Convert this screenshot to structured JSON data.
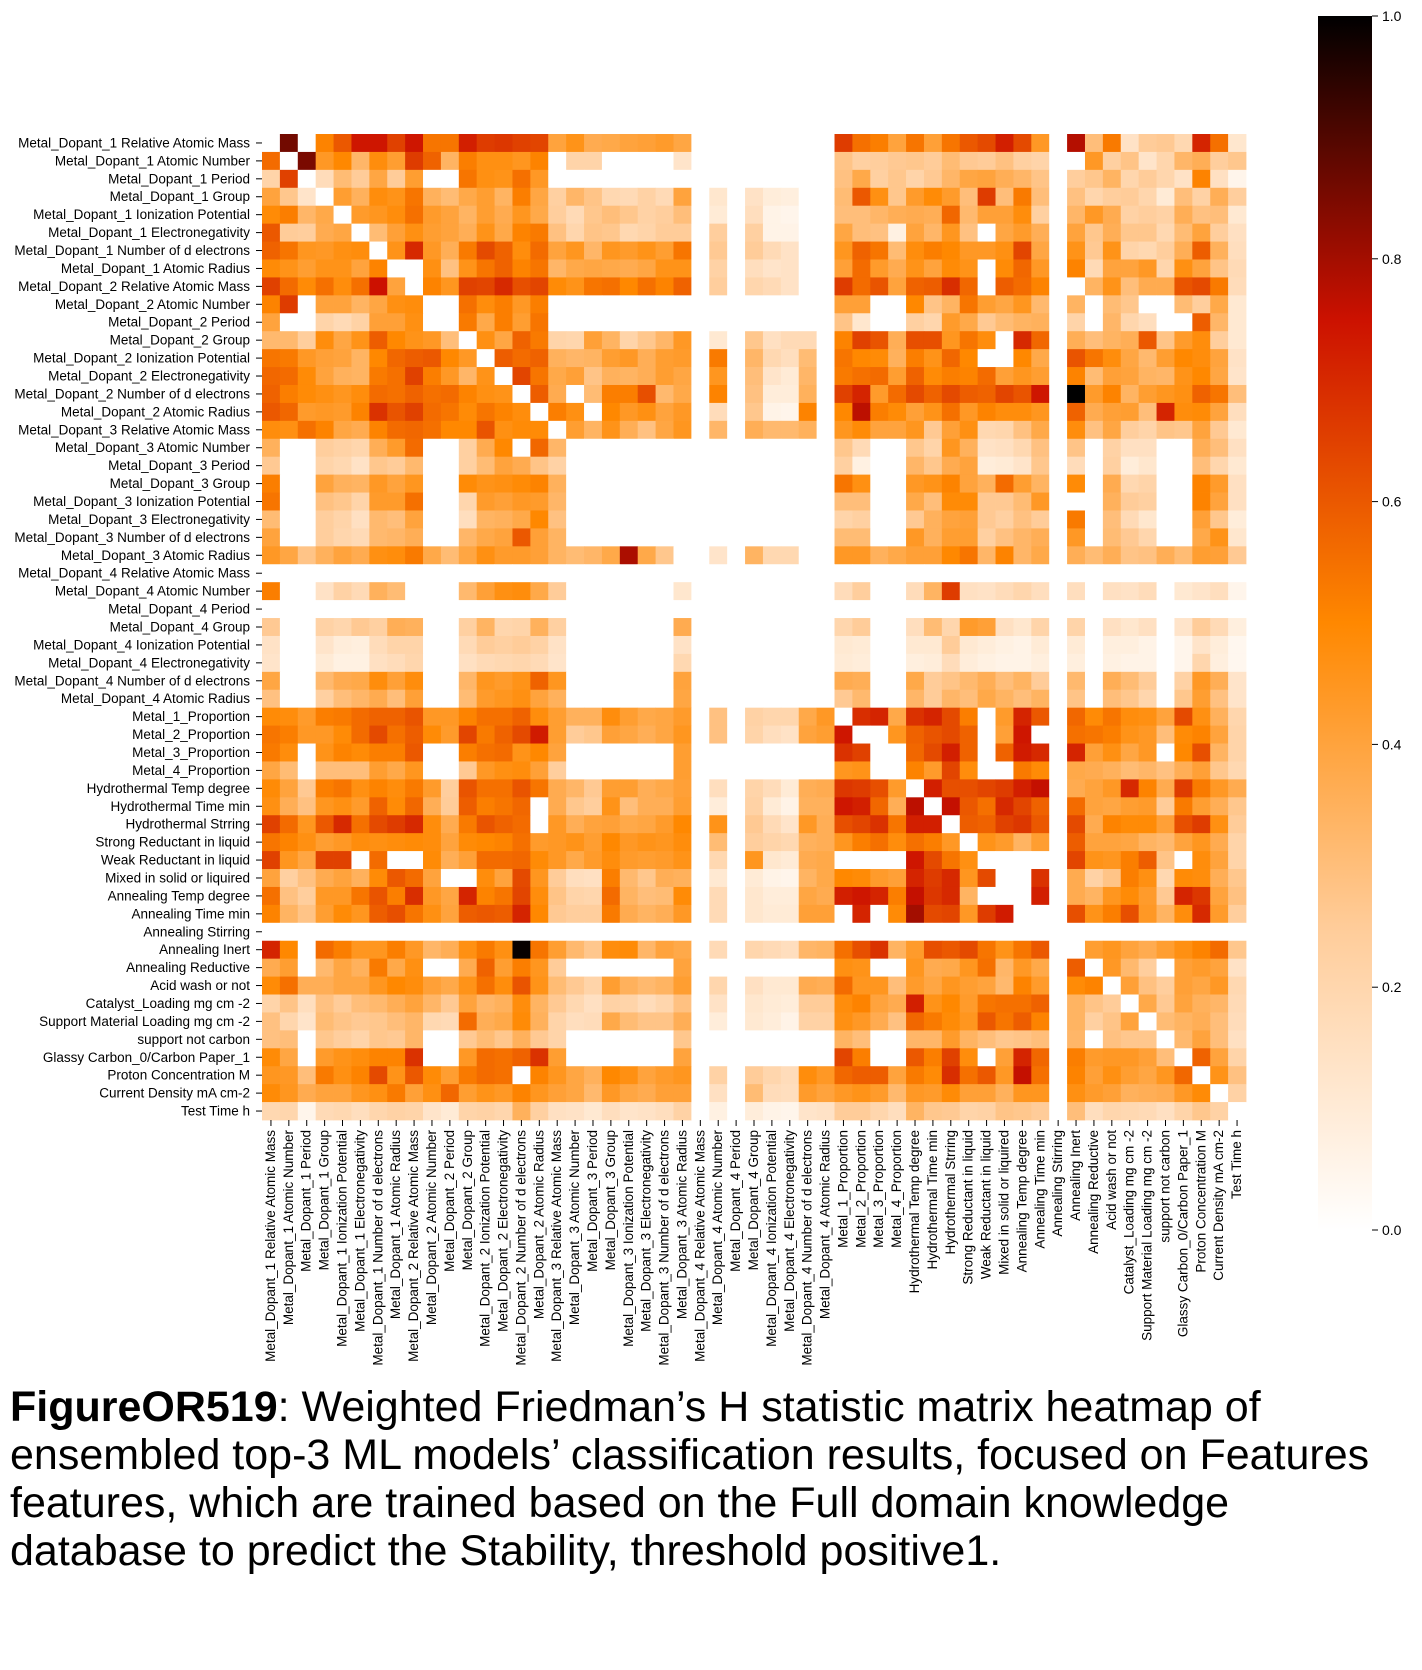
{
  "caption": {
    "label": "FigureOR519",
    "text": ": Weighted Friedman’s H statistic matrix heatmap of ensembled top-3 ML models’ classification results, focused on Features features, which are trained based on the Full domain knowledge database to predict the Stability, threshold positive1."
  },
  "chart_data": {
    "type": "heatmap",
    "title": "",
    "xlabel": "",
    "ylabel": "",
    "colormap": "gist_heat_r",
    "color_stops": [
      "#ffffff",
      "#ffcc99",
      "#ff8800",
      "#cc1100",
      "#000000"
    ],
    "vmin": 0.0,
    "vmax": 1.0,
    "colorbar_ticks": [
      "0.0",
      "0.2",
      "0.4",
      "0.6",
      "0.8",
      "1.0"
    ],
    "grid": false,
    "legend_position": "right",
    "features": [
      "Metal_Dopant_1 Relative Atomic Mass",
      "Metal_Dopant_1 Atomic Number",
      "Metal_Dopant_1 Period",
      "Metal_Dopant_1 Group",
      "Metal_Dopant_1 Ionization Potential",
      "Metal_Dopant_1 Electronegativity",
      "Metal_Dopant_1 Number of d electrons",
      "Metal_Dopant_1 Atomic Radius",
      "Metal_Dopant_2 Relative Atomic Mass",
      "Metal_Dopant_2 Atomic Number",
      "Metal_Dopant_2 Period",
      "Metal_Dopant_2 Group",
      "Metal_Dopant_2 Ionization Potential",
      "Metal_Dopant_2 Electronegativity",
      "Metal_Dopant_2 Number of d electrons",
      "Metal_Dopant_2 Atomic Radius",
      "Metal_Dopant_3 Relative Atomic Mass",
      "Metal_Dopant_3 Atomic Number",
      "Metal_Dopant_3 Period",
      "Metal_Dopant_3 Group",
      "Metal_Dopant_3 Ionization Potential",
      "Metal_Dopant_3 Electronegativity",
      "Metal_Dopant_3 Number of d electrons",
      "Metal_Dopant_3 Atomic Radius",
      "Metal_Dopant_4 Relative Atomic Mass",
      "Metal_Dopant_4 Atomic Number",
      "Metal_Dopant_4 Period",
      "Metal_Dopant_4 Group",
      "Metal_Dopant_4 Ionization Potential",
      "Metal_Dopant_4 Electronegativity",
      "Metal_Dopant_4 Number of d electrons",
      "Metal_Dopant_4 Atomic Radius",
      "Metal_1_Proportion",
      "Metal_2_Proportion",
      "Metal_3_Proportion",
      "Metal_4_Proportion",
      "Hydrothermal Temp degree",
      "Hydrothermal Time min",
      "Hydrothermal Strring",
      "Strong Reductant in liquid",
      "Weak Reductant in liquid",
      "Mixed in solid or liquired",
      "Annealing Temp degree",
      "Annealing Time min",
      "Annealing Stirring",
      "Annealing Inert",
      "Annealing Reductive",
      "Acid wash or not",
      "Catalyst_Loading mg cm -2",
      "Support Material Loading mg cm -2",
      "support not carbon",
      "Glassy Carbon_0/Carbon Paper_1",
      "Proton Concentration M",
      "Current Density mA cm-2",
      "Test Time h"
    ],
    "matrix_rows": [
      "0.00 0.86 0.00 0.51 0.60 0.74 0.74 0.65 0.74 0.54 0.54 0.72 0.66 0.67 0.65 0.64 0.40 0.46 0.37 0.38 0.40 0.41 0.43 0.39 0.00 0.00 0.00 0.00 0.00 0.00 0.00 0.00 0.66 0.55 0.52 0.40 0.54 0.41 0.54 0.60 0.63 0.72 0.63 0.44 0.00 0.78 0.30 0.53 0.14 0.25 0.26 0.19 0.71 0.55 0.12",
      "0.56 0.00 0.85 0.44 0.50 0.33 0.48 0.42 0.66 0.58 0.34 0.52 0.47 0.47 0.45 0.51 0.00 0.21 0.21 0.00 0.00 0.00 0.00 0.13 0.00 0.00 0.00 0.00 0.00 0.00 0.00 0.00 0.28 0.23 0.24 0.26 0.27 0.25 0.31 0.26 0.25 0.29 0.23 0.21 0.00 0.00 0.44 0.23 0.28 0.13 0.20 0.33 0.36 0.24 0.27",
      "0.21 0.65 0.00 0.17 0.31 0.25 0.39 0.25 0.42 0.00 0.00 0.54 0.47 0.46 0.55 0.44 0.00 0.00 0.00 0.00 0.00 0.00 0.00 0.00 0.00 0.00 0.00 0.00 0.00 0.00 0.00 0.00 0.29 0.38 0.23 0.27 0.21 0.26 0.33 0.39 0.40 0.36 0.33 0.28 0.00 0.24 0.27 0.34 0.20 0.25 0.20 0.14 0.51 0.15 0.05",
      "0.40 0.27 0.13 0.00 0.42 0.35 0.48 0.46 0.54 0.35 0.31 0.38 0.42 0.34 0.52 0.39 0.23 0.33 0.28 0.19 0.18 0.22 0.18 0.40 0.00 0.12 0.00 0.14 0.09 0.08 0.00 0.00 0.31 0.60 0.47 0.27 0.43 0.49 0.43 0.30 0.66 0.30 0.53 0.30 0.00 0.29 0.20 0.24 0.25 0.20 0.10 0.30 0.22 0.36 0.24",
      "0.49 0.52 0.33 0.38 0.00 0.43 0.45 0.48 0.55 0.43 0.40 0.34 0.42 0.37 0.45 0.38 0.24 0.18 0.27 0.30 0.27 0.22 0.24 0.30 0.00 0.10 0.00 0.16 0.06 0.05 0.00 0.00 0.30 0.30 0.33 0.36 0.37 0.36 0.57 0.32 0.41 0.41 0.48 0.23 0.00 0.33 0.44 0.37 0.22 0.24 0.22 0.36 0.29 0.30 0.11",
      "0.60 0.25 0.24 0.37 0.39 0.00 0.31 0.41 0.47 0.42 0.40 0.36 0.46 0.38 0.51 0.53 0.29 0.20 0.28 0.27 0.19 0.21 0.25 0.25 0.00 0.24 0.00 0.23 0.06 0.06 0.00 0.00 0.39 0.30 0.29 0.07 0.40 0.33 0.45 0.29 0.00 0.39 0.43 0.36 0.00 0.40 0.27 0.36 0.27 0.27 0.19 0.31 0.40 0.24 0.15",
      "0.58 0.54 0.45 0.44 0.47 0.48 0.00 0.46 0.70 0.44 0.36 0.53 0.63 0.58 0.48 0.56 0.40 0.45 0.33 0.45 0.43 0.46 0.42 0.54 0.00 0.26 0.00 0.25 0.18 0.14 0.00 0.00 0.45 0.58 0.54 0.31 0.48 0.52 0.50 0.44 0.44 0.47 0.64 0.39 0.00 0.46 0.26 0.46 0.21 0.19 0.24 0.36 0.59 0.35 0.16",
      "0.49 0.46 0.42 0.46 0.46 0.40 0.51 0.00 0.00 0.47 0.29 0.46 0.54 0.58 0.51 0.54 0.33 0.38 0.39 0.38 0.37 0.39 0.46 0.46 0.00 0.22 0.00 0.16 0.13 0.14 0.00 0.00 0.41 0.56 0.43 0.37 0.46 0.40 0.49 0.46 0.00 0.49 0.57 0.44 0.00 0.51 0.18 0.40 0.40 0.44 0.20 0.47 0.40 0.28 0.18",
      "0.65 0.56 0.49 0.55 0.48 0.55 0.75 0.40 0.00 0.51 0.45 0.65 0.64 0.70 0.62 0.64 0.49 0.46 0.54 0.55 0.50 0.55 0.51 0.58 0.00 0.24 0.00 0.20 0.18 0.14 0.00 0.00 0.66 0.56 0.61 0.40 0.58 0.59 0.69 0.57 0.00 0.59 0.56 0.51 0.00 0.00 0.34 0.46 0.30 0.37 0.37 0.61 0.63 0.53 0.17",
      "0.51 0.66 0.00 0.40 0.40 0.34 0.39 0.47 0.48 0.00 0.00 0.55 0.48 0.52 0.44 0.52 0.00 0.00 0.00 0.00 0.00 0.00 0.00 0.00 0.00 0.00 0.00 0.00 0.00 0.00 0.00 0.00 0.41 0.41 0.00 0.00 0.50 0.28 0.34 0.54 0.42 0.39 0.45 0.32 0.00 0.34 0.00 0.31 0.27 0.00 0.00 0.31 0.24 0.38 0.11",
      "0.40 0.00 0.00 0.21 0.18 0.22 0.41 0.41 0.47 0.00 0.00 0.53 0.38 0.52 0.42 0.54 0.00 0.00 0.00 0.00 0.00 0.00 0.00 0.00 0.00 0.00 0.00 0.00 0.00 0.00 0.00 0.00 0.28 0.12 0.00 0.00 0.23 0.20 0.43 0.38 0.26 0.31 0.34 0.35 0.00 0.21 0.00 0.33 0.20 0.16 0.00 0.00 0.59 0.33 0.11",
      "0.32 0.32 0.24 0.48 0.39 0.46 0.59 0.50 0.46 0.44 0.30 0.00 0.47 0.39 0.58 0.53 0.21 0.20 0.41 0.34 0.21 0.27 0.33 0.44 0.00 0.11 0.00 0.27 0.15 0.18 0.18 0.00 0.51 0.65 0.61 0.36 0.62 0.62 0.45 0.54 0.48 0.00 0.70 0.57 0.00 0.36 0.30 0.34 0.36 0.60 0.28 0.43 0.48 0.24 0.11",
      "0.54 0.53 0.44 0.41 0.40 0.34 0.50 0.57 0.59 0.60 0.50 0.44 0.00 0.59 0.56 0.58 0.35 0.33 0.34 0.42 0.44 0.36 0.42 0.43 0.00 0.53 0.00 0.33 0.19 0.16 0.31 0.00 0.54 0.50 0.49 0.35 0.52 0.46 0.57 0.50 0.00 0.00 0.50 0.38 0.00 0.61 0.54 0.48 0.39 0.32 0.42 0.50 0.48 0.40 0.14",
      "0.57 0.56 0.49 0.40 0.35 0.34 0.53 0.55 0.65 0.52 0.44 0.33 0.46 0.00 0.64 0.54 0.38 0.41 0.28 0.35 0.34 0.36 0.42 0.39 0.00 0.45 0.00 0.30 0.13 0.10 0.33 0.00 0.53 0.55 0.56 0.42 0.58 0.49 0.52 0.51 0.56 0.41 0.45 0.42 0.00 0.51 0.31 0.41 0.40 0.34 0.33 0.46 0.50 0.39 0.13",
      "0.58 0.52 0.49 0.47 0.45 0.48 0.56 0.55 0.58 0.55 0.56 0.51 0.47 0.46 0.00 0.59 0.37 0.00 0.31 0.52 0.52 0.62 0.32 0.38 0.00 0.51 0.00 0.29 0.09 0.09 0.35 0.00 0.65 0.71 0.43 0.56 0.63 0.58 0.63 0.59 0.58 0.64 0.61 0.74 0.00 1.00 0.43 0.51 0.34 0.42 0.45 0.47 0.58 0.54 0.30",
      "0.60 0.57 0.43 0.44 0.43 0.51 0.68 0.61 0.65 0.56 0.54 0.49 0.54 0.51 0.48 0.00 0.52 0.47 0.00 0.50 0.44 0.47 0.40 0.44 0.00 0.17 0.00 0.27 0.06 0.05 0.51 0.00 0.50 0.77 0.52 0.49 0.41 0.46 0.55 0.44 0.51 0.48 0.48 0.45 0.00 0.58 0.37 0.41 0.42 0.30 0.71 0.48 0.49 0.40 0.16",
      "0.48 0.47 0.55 0.51 0.39 0.37 0.51 0.56 0.57 0.55 0.50 0.50 0.61 0.47 0.49 0.49 0.00 0.42 0.34 0.46 0.36 0.29 0.39 0.45 0.00 0.33 0.00 0.36 0.32 0.32 0.35 0.00 0.45 0.49 0.40 0.40 0.45 0.26 0.41 0.47 0.19 0.20 0.29 0.38 0.00 0.48 0.29 0.39 0.24 0.21 0.28 0.27 0.40 0.26 0.11",
      "0.35 0.00 0.00 0.24 0.22 0.20 0.36 0.43 0.56 0.00 0.00 0.23 0.37 0.50 0.00 0.57 0.33 0.00 0.00 0.00 0.00 0.00 0.00 0.00 0.00 0.00 0.00 0.00 0.00 0.00 0.00 0.00 0.27 0.18 0.00 0.00 0.27 0.21 0.45 0.35 0.14 0.15 0.19 0.29 0.00 0.28 0.00 0.22 0.15 0.15 0.00 0.00 0.36 0.30 0.15",
      "0.26 0.00 0.00 0.21 0.19 0.14 0.27 0.25 0.32 0.00 0.00 0.23 0.31 0.40 0.37 0.28 0.22 0.00 0.00 0.00 0.00 0.00 0.00 0.00 0.00 0.00 0.00 0.00 0.00 0.00 0.00 0.00 0.23 0.07 0.00 0.00 0.33 0.27 0.37 0.40 0.09 0.10 0.13 0.27 0.00 0.17 0.00 0.23 0.09 0.12 0.00 0.00 0.30 0.20 0.11",
      "0.52 0.00 0.00 0.40 0.35 0.34 0.44 0.40 0.45 0.00 0.00 0.49 0.46 0.47 0.49 0.51 0.35 0.00 0.00 0.00 0.00 0.00 0.00 0.00 0.00 0.00 0.00 0.00 0.00 0.00 0.00 0.00 0.54 0.47 0.00 0.00 0.44 0.46 0.51 0.40 0.35 0.56 0.42 0.34 0.00 0.49 0.00 0.37 0.19 0.21 0.00 0.00 0.51 0.43 0.15",
      "0.54 0.00 0.00 0.29 0.27 0.21 0.43 0.43 0.55 0.00 0.00 0.20 0.43 0.41 0.44 0.43 0.33 0.00 0.00 0.00 0.00 0.00 0.00 0.00 0.00 0.00 0.00 0.00 0.00 0.00 0.00 0.00 0.30 0.30 0.00 0.00 0.38 0.30 0.49 0.49 0.26 0.26 0.31 0.44 0.00 0.00 0.00 0.35 0.25 0.23 0.00 0.00 0.51 0.40 0.15",
      "0.31 0.00 0.00 0.24 0.21 0.15 0.32 0.30 0.40 0.00 0.00 0.16 0.34 0.35 0.38 0.50 0.29 0.00 0.00 0.00 0.00 0.00 0.00 0.00 0.00 0.00 0.00 0.00 0.00 0.00 0.00 0.00 0.21 0.23 0.00 0.00 0.26 0.35 0.40 0.41 0.26 0.23 0.29 0.25 0.00 0.53 0.00 0.30 0.18 0.12 0.00 0.00 0.41 0.27 0.09",
      "0.40 0.00 0.00 0.24 0.20 0.18 0.32 0.33 0.36 0.00 0.00 0.33 0.38 0.40 0.60 0.41 0.34 0.00 0.00 0.00 0.00 0.00 0.00 0.00 0.00 0.00 0.00 0.00 0.00 0.00 0.00 0.00 0.31 0.31 0.00 0.00 0.44 0.35 0.42 0.42 0.23 0.29 0.33 0.36 0.00 0.44 0.00 0.31 0.26 0.20 0.00 0.00 0.38 0.46 0.12",
      "0.44 0.39 0.28 0.35 0.40 0.37 0.47 0.48 0.53 0.38 0.31 0.39 0.47 0.43 0.43 0.41 0.34 0.31 0.33 0.38 0.79 0.38 0.27 0.00 0.00 0.13 0.00 0.34 0.19 0.19 0.00 0.00 0.44 0.44 0.35 0.38 0.41 0.41 0.50 0.54 0.33 0.51 0.33 0.38 0.00 0.36 0.31 0.36 0.28 0.29 0.36 0.31 0.42 0.41 0.26",
      "0.00 0.00 0.00 0.00 0.00 0.00 0.00 0.00 0.00 0.00 0.00 0.00 0.00 0.00 0.00 0.00 0.00 0.00 0.00 0.00 0.00 0.00 0.00 0.00 0.00 0.00 0.00 0.00 0.00 0.00 0.00 0.00 0.00 0.00 0.00 0.00 0.00 0.00 0.00 0.00 0.00 0.00 0.00 0.00 0.00 0.00 0.00 0.00 0.00 0.00 0.00 0.00 0.00 0.00 0.00",
      "0.52 0.00 0.00 0.14 0.22 0.18 0.35 0.31 0.00 0.00 0.00 0.32 0.41 0.47 0.48 0.38 0.25 0.00 0.00 0.00 0.00 0.00 0.00 0.12 0.00 0.00 0.00 0.00 0.00 0.00 0.00 0.00 0.17 0.24 0.00 0.00 0.17 0.34 0.66 0.15 0.14 0.17 0.20 0.16 0.00 0.16 0.00 0.15 0.14 0.17 0.00 0.11 0.13 0.16 0.05",
      "0.00 0.00 0.00 0.00 0.00 0.00 0.00 0.00 0.00 0.00 0.00 0.00 0.00 0.00 0.00 0.00 0.00 0.00 0.00 0.00 0.00 0.00 0.00 0.00 0.00 0.00 0.00 0.00 0.00 0.00 0.00 0.00 0.00 0.00 0.00 0.00 0.00 0.00 0.00 0.00 0.00 0.00 0.00 0.00 0.00 0.00 0.00 0.00 0.00 0.00 0.00 0.00 0.00 0.00 0.00",
      "0.26 0.00 0.00 0.22 0.20 0.26 0.23 0.36 0.35 0.00 0.00 0.23 0.34 0.20 0.21 0.35 0.23 0.00 0.00 0.00 0.00 0.00 0.00 0.37 0.00 0.00 0.00 0.00 0.00 0.00 0.00 0.00 0.20 0.25 0.00 0.00 0.16 0.31 0.20 0.43 0.41 0.15 0.12 0.21 0.00 0.21 0.00 0.15 0.12 0.15 0.00 0.13 0.25 0.18 0.08",
      "0.14 0.00 0.00 0.13 0.09 0.08 0.17 0.21 0.21 0.00 0.00 0.18 0.25 0.23 0.25 0.22 0.14 0.00 0.00 0.00 0.00 0.00 0.00 0.14 0.00 0.00 0.00 0.00 0.00 0.00 0.00 0.00 0.11 0.10 0.00 0.00 0.11 0.11 0.25 0.11 0.09 0.07 0.06 0.10 0.00 0.10 0.00 0.08 0.08 0.06 0.00 0.05 0.13 0.09 0.04",
      "0.13 0.00 0.00 0.10 0.07 0.07 0.15 0.17 0.20 0.00 0.00 0.15 0.18 0.19 0.20 0.18 0.13 0.00 0.00 0.00 0.00 0.00 0.00 0.19 0.00 0.00 0.00 0.00 0.00 0.00 0.00 0.00 0.10 0.09 0.00 0.00 0.08 0.09 0.17 0.09 0.07 0.06 0.06 0.08 0.00 0.08 0.00 0.07 0.06 0.06 0.00 0.05 0.20 0.08 0.04",
      "0.39 0.00 0.00 0.32 0.37 0.38 0.48 0.41 0.48 0.00 0.00 0.33 0.45 0.43 0.46 0.58 0.45 0.00 0.00 0.00 0.00 0.00 0.00 0.40 0.00 0.00 0.00 0.00 0.00 0.00 0.00 0.00 0.37 0.36 0.00 0.00 0.38 0.25 0.28 0.32 0.36 0.30 0.34 0.25 0.00 0.32 0.00 0.36 0.31 0.25 0.00 0.22 0.44 0.36 0.13",
      "0.29 0.00 0.00 0.23 0.30 0.33 0.37 0.30 0.41 0.00 0.00 0.31 0.43 0.45 0.47 0.40 0.35 0.00 0.00 0.00 0.00 0.00 0.00 0.39 0.00 0.00 0.00 0.00 0.00 0.00 0.00 0.00 0.26 0.32 0.00 0.00 0.33 0.25 0.33 0.30 0.38 0.34 0.30 0.34 0.00 0.28 0.00 0.30 0.27 0.20 0.00 0.27 0.42 0.29 0.13",
      "0.49 0.48 0.43 0.52 0.53 0.56 0.58 0.58 0.61 0.44 0.44 0.51 0.55 0.55 0.58 0.48 0.42 0.35 0.35 0.48 0.42 0.38 0.39 0.43 0.00 0.29 0.00 0.22 0.20 0.20 0.38 0.44 0.00 0.69 0.71 0.38 0.68 0.71 0.63 0.52 0.00 0.43 0.71 0.60 0.00 0.57 0.49 0.54 0.48 0.47 0.40 0.63 0.47 0.35 0.20",
      "0.54 0.52 0.44 0.44 0.49 0.56 0.63 0.55 0.59 0.49 0.43 0.64 0.53 0.58 0.63 0.73 0.42 0.25 0.27 0.41 0.39 0.36 0.39 0.45 0.00 0.29 0.00 0.21 0.16 0.14 0.40 0.42 0.74 0.00 0.00 0.45 0.58 0.61 0.63 0.58 0.00 0.41 0.74 0.00 0.00 0.55 0.54 0.52 0.46 0.44 0.30 0.49 0.51 0.40 0.21",
      "0.53 0.48 0.00 0.46 0.51 0.49 0.52 0.52 0.60 0.00 0.00 0.52 0.55 0.56 0.46 0.50 0.40 0.00 0.00 0.00 0.00 0.00 0.00 0.42 0.00 0.00 0.00 0.00 0.00 0.00 0.00 0.00 0.68 0.65 0.00 0.00 0.57 0.63 0.72 0.58 0.00 0.58 0.73 0.70 0.00 0.71 0.41 0.47 0.39 0.44 0.00 0.50 0.62 0.34 0.21",
      "0.39 0.31 0.00 0.30 0.30 0.30 0.42 0.38 0.45 0.00 0.00 0.26 0.44 0.47 0.48 0.41 0.24 0.00 0.00 0.00 0.00 0.00 0.00 0.42 0.00 0.00 0.00 0.00 0.00 0.00 0.00 0.00 0.45 0.46 0.00 0.00 0.51 0.43 0.64 0.48 0.00 0.00 0.53 0.49 0.00 0.38 0.37 0.35 0.31 0.33 0.29 0.36 0.41 0.27 0.19",
      "0.49 0.40 0.26 0.52 0.54 0.47 0.51 0.48 0.53 0.43 0.24 0.61 0.55 0.55 0.61 0.54 0.37 0.33 0.26 0.42 0.42 0.36 0.38 0.41 0.00 0.16 0.00 0.21 0.17 0.10 0.36 0.37 0.67 0.66 0.62 0.43 0.00 0.72 0.62 0.62 0.64 0.66 0.72 0.76 0.00 0.37 0.40 0.44 0.70 0.51 0.37 0.66 0.53 0.44 0.37",
      "0.47 0.36 0.29 0.45 0.47 0.43 0.58 0.49 0.57 0.36 0.25 0.59 0.52 0.54 0.57 0.00 0.37 0.27 0.24 0.46 0.30 0.36 0.36 0.42 0.00 0.09 0.00 0.22 0.10 0.06 0.35 0.35 0.74 0.72 0.57 0.36 0.77 0.00 0.76 0.60 0.55 0.70 0.64 0.58 0.00 0.56 0.40 0.39 0.42 0.43 0.25 0.53 0.42 0.36 0.27",
      "0.65 0.56 0.45 0.60 0.70 0.55 0.63 0.66 0.70 0.48 0.37 0.53 0.61 0.58 0.56 0.00 0.44 0.36 0.40 0.41 0.38 0.39 0.43 0.50 0.00 0.46 0.00 0.26 0.18 0.13 0.44 0.36 0.62 0.64 0.68 0.54 0.72 0.72 0.00 0.59 0.58 0.65 0.67 0.60 0.00 0.63 0.37 0.51 0.49 0.49 0.41 0.62 0.66 0.47 0.25",
      "0.54 0.51 0.47 0.42 0.44 0.48 0.47 0.48 0.49 0.48 0.40 0.49 0.50 0.51 0.55 0.43 0.44 0.46 0.42 0.50 0.44 0.46 0.45 0.48 0.00 0.31 0.00 0.24 0.21 0.19 0.35 0.36 0.45 0.52 0.55 0.48 0.55 0.52 0.44 0.00 0.46 0.43 0.34 0.42 0.00 0.59 0.40 0.40 0.39 0.34 0.32 0.40 0.45 0.37 0.21",
      "0.65 0.45 0.39 0.65 0.65 0.00 0.56 0.00 0.00 0.49 0.36 0.41 0.56 0.56 0.57 0.49 0.44 0.38 0.43 0.48 0.43 0.42 0.43 0.46 0.00 0.19 0.00 0.45 0.12 0.10 0.37 0.38 0.00 0.00 0.00 0.00 0.74 0.63 0.54 0.47 0.00 0.00 0.00 0.00 0.00 0.64 0.46 0.45 0.52 0.59 0.28 0.00 0.48 0.40 0.21",
      "0.40 0.23 0.29 0.37 0.40 0.35 0.49 0.60 0.56 0.40 0.00 0.00 0.48 0.40 0.63 0.45 0.25 0.16 0.15 0.52 0.32 0.27 0.36 0.35 0.00 0.11 0.00 0.10 0.06 0.05 0.34 0.38 0.50 0.49 0.43 0.41 0.71 0.66 0.70 0.45 0.63 0.00 0.00 0.68 0.00 0.37 0.22 0.28 0.52 0.47 0.19 0.49 0.48 0.36 0.27",
      "0.55 0.29 0.24 0.44 0.44 0.54 0.61 0.52 0.69 0.44 0.39 0.71 0.51 0.54 0.64 0.48 0.28 0.21 0.20 0.56 0.34 0.30 0.31 0.49 0.00 0.18 0.00 0.12 0.09 0.09 0.39 0.37 0.72 0.74 0.71 0.52 0.76 0.67 0.70 0.34 0.00 0.00 0.00 0.72 0.00 0.37 0.34 0.45 0.49 0.43 0.26 0.71 0.67 0.40 0.29",
      "0.51 0.34 0.28 0.42 0.49 0.45 0.59 0.62 0.54 0.47 0.40 0.59 0.60 0.59 0.71 0.50 0.26 0.24 0.24 0.53 0.37 0.34 0.36 0.44 0.00 0.18 0.00 0.12 0.10 0.10 0.41 0.41 0.00 0.71 0.00 0.49 0.80 0.63 0.64 0.44 0.66 0.73 0.00 0.00 0.00 0.62 0.46 0.52 0.62 0.44 0.34 0.48 0.70 0.43 0.24",
      "0.00 0.00 0.00 0.00 0.00 0.00 0.00 0.00 0.00 0.00 0.00 0.00 0.00 0.00 0.00 0.00 0.00 0.00 0.00 0.00 0.00 0.00 0.00 0.00 0.00 0.00 0.00 0.00 0.00 0.00 0.00 0.00 0.00 0.00 0.00 0.00 0.00 0.00 0.00 0.00 0.00 0.00 0.00 0.00 0.00 0.00 0.00 0.00 0.00 0.00 0.00 0.00 0.00 0.00 0.00",
      "0.71 0.50 0.00 0.56 0.52 0.45 0.45 0.52 0.44 0.33 0.36 0.47 0.53 0.47 0.99 0.54 0.42 0.32 0.27 0.48 0.49 0.33 0.40 0.38 0.00 0.18 0.00 0.20 0.18 0.16 0.33 0.34 0.55 0.62 0.68 0.34 0.43 0.62 0.60 0.63 0.54 0.46 0.54 0.60 0.00 0.00 0.42 0.45 0.40 0.37 0.42 0.47 0.51 0.56 0.27",
      "0.37 0.42 0.00 0.32 0.39 0.35 0.53 0.38 0.47 0.00 0.00 0.37 0.58 0.42 0.52 0.45 0.25 0.00 0.00 0.00 0.00 0.00 0.00 0.40 0.00 0.00 0.00 0.00 0.00 0.00 0.00 0.00 0.47 0.46 0.00 0.00 0.45 0.37 0.38 0.45 0.55 0.33 0.44 0.38 0.00 0.59 0.00 0.44 0.32 0.24 0.00 0.41 0.43 0.40 0.14",
      "0.49 0.55 0.36 0.36 0.39 0.39 0.45 0.50 0.48 0.41 0.38 0.46 0.55 0.48 0.61 0.46 0.31 0.26 0.21 0.42 0.35 0.32 0.34 0.42 0.00 0.20 0.00 0.15 0.11 0.11 0.37 0.36 0.56 0.45 0.45 0.30 0.43 0.39 0.45 0.42 0.40 0.32 0.51 0.43 0.00 0.49 0.51 0.00 0.41 0.29 0.24 0.41 0.39 0.44 0.19",
      "0.21 0.28 0.16 0.29 0.25 0.30 0.32 0.36 0.40 0.33 0.26 0.40 0.33 0.35 0.48 0.34 0.26 0.19 0.15 0.22 0.21 0.17 0.20 0.29 0.00 0.14 0.00 0.12 0.10 0.09 0.25 0.25 0.48 0.51 0.40 0.37 0.72 0.46 0.50 0.43 0.54 0.55 0.55 0.58 0.00 0.34 0.28 0.25 0.00 0.38 0.26 0.40 0.35 0.33 0.18",
      "0.29 0.20 0.13 0.31 0.28 0.26 0.27 0.30 0.33 0.19 0.18 0.56 0.36 0.38 0.49 0.35 0.21 0.16 0.17 0.38 0.31 0.28 0.28 0.36 0.00 0.09 0.00 0.11 0.09 0.06 0.22 0.22 0.47 0.44 0.37 0.29 0.57 0.53 0.49 0.45 0.60 0.54 0.59 0.51 0.00 0.34 0.23 0.28 0.40 0.00 0.31 0.34 0.36 0.30 0.17",
      "0.29 0.30 0.00 0.27 0.24 0.21 0.27 0.26 0.33 0.00 0.00 0.26 0.31 0.27 0.35 0.26 0.21 0.00 0.00 0.00 0.00 0.00 0.00 0.27 0.00 0.00 0.00 0.00 0.00 0.00 0.00 0.00 0.34 0.30 0.00 0.00 0.33 0.33 0.43 0.34 0.30 0.27 0.28 0.30 0.00 0.33 0.00 0.29 0.27 0.27 0.00 0.32 0.40 0.30 0.15",
      "0.49 0.39 0.00 0.43 0.46 0.48 0.51 0.51 0.68 0.00 0.00 0.44 0.56 0.55 0.58 0.68 0.42 0.00 0.00 0.00 0.00 0.00 0.00 0.40 0.00 0.00 0.00 0.00 0.00 0.00 0.00 0.00 0.64 0.52 0.00 0.00 0.60 0.52 0.65 0.48 0.00 0.41 0.71 0.57 0.00 0.52 0.43 0.44 0.44 0.41 0.30 0.00 0.58 0.40 0.21",
      "0.45 0.44 0.30 0.53 0.47 0.51 0.63 0.46 0.60 0.49 0.42 0.53 0.56 0.55 0.00 0.51 0.45 0.39 0.35 0.50 0.47 0.40 0.43 0.45 0.00 0.22 0.00 0.25 0.20 0.17 0.48 0.44 0.57 0.59 0.59 0.40 0.53 0.49 0.69 0.55 0.60 0.44 0.76 0.55 0.00 0.51 0.41 0.47 0.42 0.39 0.45 0.57 0.00 0.46 0.29",
      "0.49 0.45 0.37 0.40 0.40 0.45 0.47 0.53 0.41 0.47 0.57 0.42 0.46 0.44 0.51 0.45 0.41 0.39 0.32 0.44 0.39 0.37 0.41 0.41 0.00 0.15 0.00 0.31 0.17 0.16 0.43 0.40 0.44 0.46 0.43 0.32 0.44 0.43 0.49 0.41 0.41 0.35 0.45 0.45 0.00 0.47 0.43 0.41 0.35 0.36 0.37 0.44 0.49 0.00 0.22",
      "0.19 0.20 0.05 0.18 0.19 0.16 0.20 0.22 0.21 0.13 0.10 0.21 0.22 0.20 0.35 0.23 0.15 0.14 0.11 0.16 0.13 0.14 0.16 0.22 0.00 0.07 0.00 0.09 0.06 0.05 0.13 0.14 0.25 0.25 0.20 0.16 0.34 0.27 0.26 0.21 0.22 0.28 0.27 0.25 0.00 0.30 0.16 0.20 0.19 0.18 0.15 0.21 0.27 0.22 0.00"
    ]
  }
}
